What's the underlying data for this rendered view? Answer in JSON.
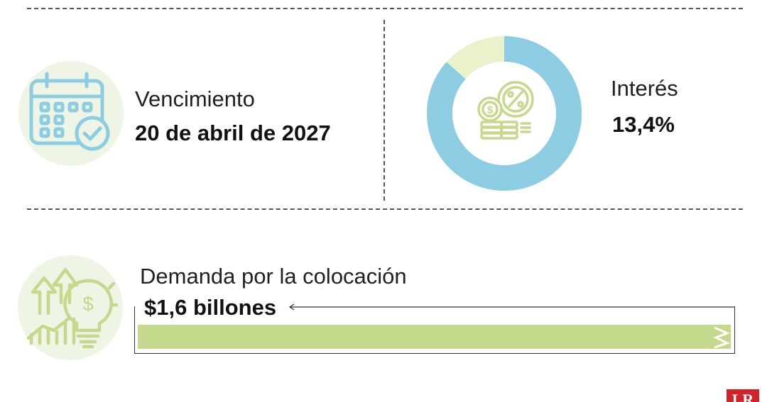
{
  "maturity": {
    "label": "Vencimiento",
    "value": "20 de abril de 2027"
  },
  "interest": {
    "label": "Interés",
    "value": "13,4%",
    "donut_fraction": 0.866,
    "colors": {
      "main": "#8ccde3",
      "rest": "#e9f2cb"
    }
  },
  "demand": {
    "label": "Demanda por la colocación",
    "value": "$1,6 billones",
    "bar_color": "#c5d98c"
  },
  "brand": {
    "logo_text": "LR",
    "logo_color": "#d2232a"
  },
  "icons": {
    "calendar": "calendar-check-icon",
    "coins": "coins-percent-icon",
    "growth": "growth-lightbulb-icon"
  }
}
